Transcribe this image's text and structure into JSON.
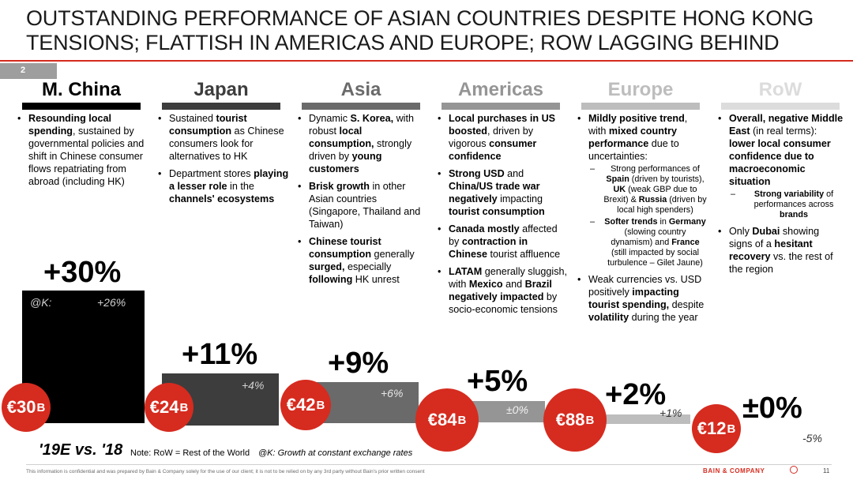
{
  "title": {
    "line1": "OUTSTANDING PERFORMANCE OF ASIAN COUNTRIES DESPITE HONG KONG",
    "line2": "TENSIONS; FLATTISH IN AMERICAS AND EUROPE; ROW LAGGING BEHIND"
  },
  "section_number": "2",
  "colors": {
    "accent": "#d62b1f",
    "china": "#000000",
    "japan": "#3d3d3d",
    "asia": "#6a6a6a",
    "americas": "#959595",
    "europe": "#bdbdbd",
    "row": "#dcdcdc"
  },
  "regions": [
    {
      "name": "M. China",
      "growth": "+30%",
      "k_label": "@K:",
      "k_growth": "+26%",
      "market": "€30",
      "unit": "B"
    },
    {
      "name": "Japan",
      "growth": "+11%",
      "k_growth": "+4%",
      "market": "€24",
      "unit": "B"
    },
    {
      "name": "Asia",
      "growth": "+9%",
      "k_growth": "+6%",
      "market": "€42",
      "unit": "B"
    },
    {
      "name": "Americas",
      "growth": "+5%",
      "k_growth": "±0%",
      "market": "€84",
      "unit": "B"
    },
    {
      "name": "Europe",
      "growth": "+2%",
      "k_growth": "+1%",
      "market": "€88",
      "unit": "B"
    },
    {
      "name": "RoW",
      "growth": "±0%",
      "k_growth": "-5%",
      "market": "€12",
      "unit": "B"
    }
  ],
  "text": {
    "china": {
      "b1_bold": "Resounding local spending",
      "b1_rest": ", sustained by governmental policies and shift in Chinese consumer flows repatriating from abroad (including HK)"
    },
    "japan": {
      "b1_a": "Sustained ",
      "b1_b": "tourist consumption",
      "b1_c": " as Chinese consumers look for alternatives to HK",
      "b2_a": "Department stores ",
      "b2_b": "playing a lesser role",
      "b2_c": " in the ",
      "b2_d": "channels' ecosystems"
    },
    "asia": {
      "b1_a": "Dynamic ",
      "b1_b": "S. Korea,",
      "b1_c": " with robust ",
      "b1_d": "local consumption,",
      "b1_e": " strongly driven by ",
      "b1_f": "young customers",
      "b2_a": "Brisk growth",
      "b2_b": " in other Asian countries (Singapore, Thailand and Taiwan)",
      "b3_a": "Chinese tourist consumption",
      "b3_b": " generally ",
      "b3_c": "surged,",
      "b3_d": " especially ",
      "b3_e": "following",
      "b3_f": " HK unrest"
    },
    "americas": {
      "b1_a": "Local purchases in US boosted",
      "b1_b": ", driven by vigorous ",
      "b1_c": "consumer confidence",
      "b2_a": "Strong USD",
      "b2_b": " and ",
      "b2_c": "China/US trade war negatively",
      "b2_d": " impacting ",
      "b2_e": "tourist consumption",
      "b3_a": "Canada mostly",
      "b3_b": " affected by ",
      "b3_c": "contraction in Chinese",
      "b3_d": " tourist affluence",
      "b4_a": "LATAM",
      "b4_b": " generally sluggish, with ",
      "b4_c": "Mexico",
      "b4_d": " and ",
      "b4_e": "Brazil negatively impacted",
      "b4_f": " by socio-economic tensions"
    },
    "europe": {
      "b1_a": "Mildly positive trend",
      "b1_b": ", with ",
      "b1_c": "mixed country performance",
      "b1_d": " due to uncertainties:",
      "s1_a": "Strong performances of ",
      "s1_b": "Spain",
      "s1_c": " (driven by tourists), ",
      "s1_d": "UK",
      "s1_e": " (weak GBP due to Brexit) & ",
      "s1_f": "Russia",
      "s1_g": " (driven by local high spenders)",
      "s2_a": "Softer trends",
      "s2_b": " in ",
      "s2_c": "Germany",
      "s2_d": " (slowing country dynamism) and ",
      "s2_e": "France",
      "s2_f": " (still impacted by social turbulence – Gilet Jaune)",
      "b2_a": "Weak currencies vs. USD positively ",
      "b2_b": "impacting tourist spending,",
      "b2_c": " despite ",
      "b2_d": "volatility",
      "b2_e": " during the year"
    },
    "row": {
      "b1_a": "Overall, negative Middle East",
      "b1_b": " (in real terms): ",
      "b1_c": "lower local consumer confidence due to macroeconomic situation",
      "s1_a": "Strong variability",
      "s1_b": " of performances across ",
      "s1_c": "brands",
      "b2_a": "Only ",
      "b2_b": "Dubai",
      "b2_c": " showing signs of a ",
      "b2_d": "hesitant recovery",
      "b2_e": " vs. the rest of the region"
    }
  },
  "footer": {
    "period": "'19E vs. '18",
    "note": "Note: RoW = Rest of the World",
    "note2": "@K: Growth at constant exchange rates",
    "disclaimer": "This information is confidential and was prepared by Bain & Company solely for the use of our client; it is not to be relied on by any 3rd party without Bain's prior written consent",
    "brand": "BAIN & COMPANY",
    "page": "11"
  }
}
